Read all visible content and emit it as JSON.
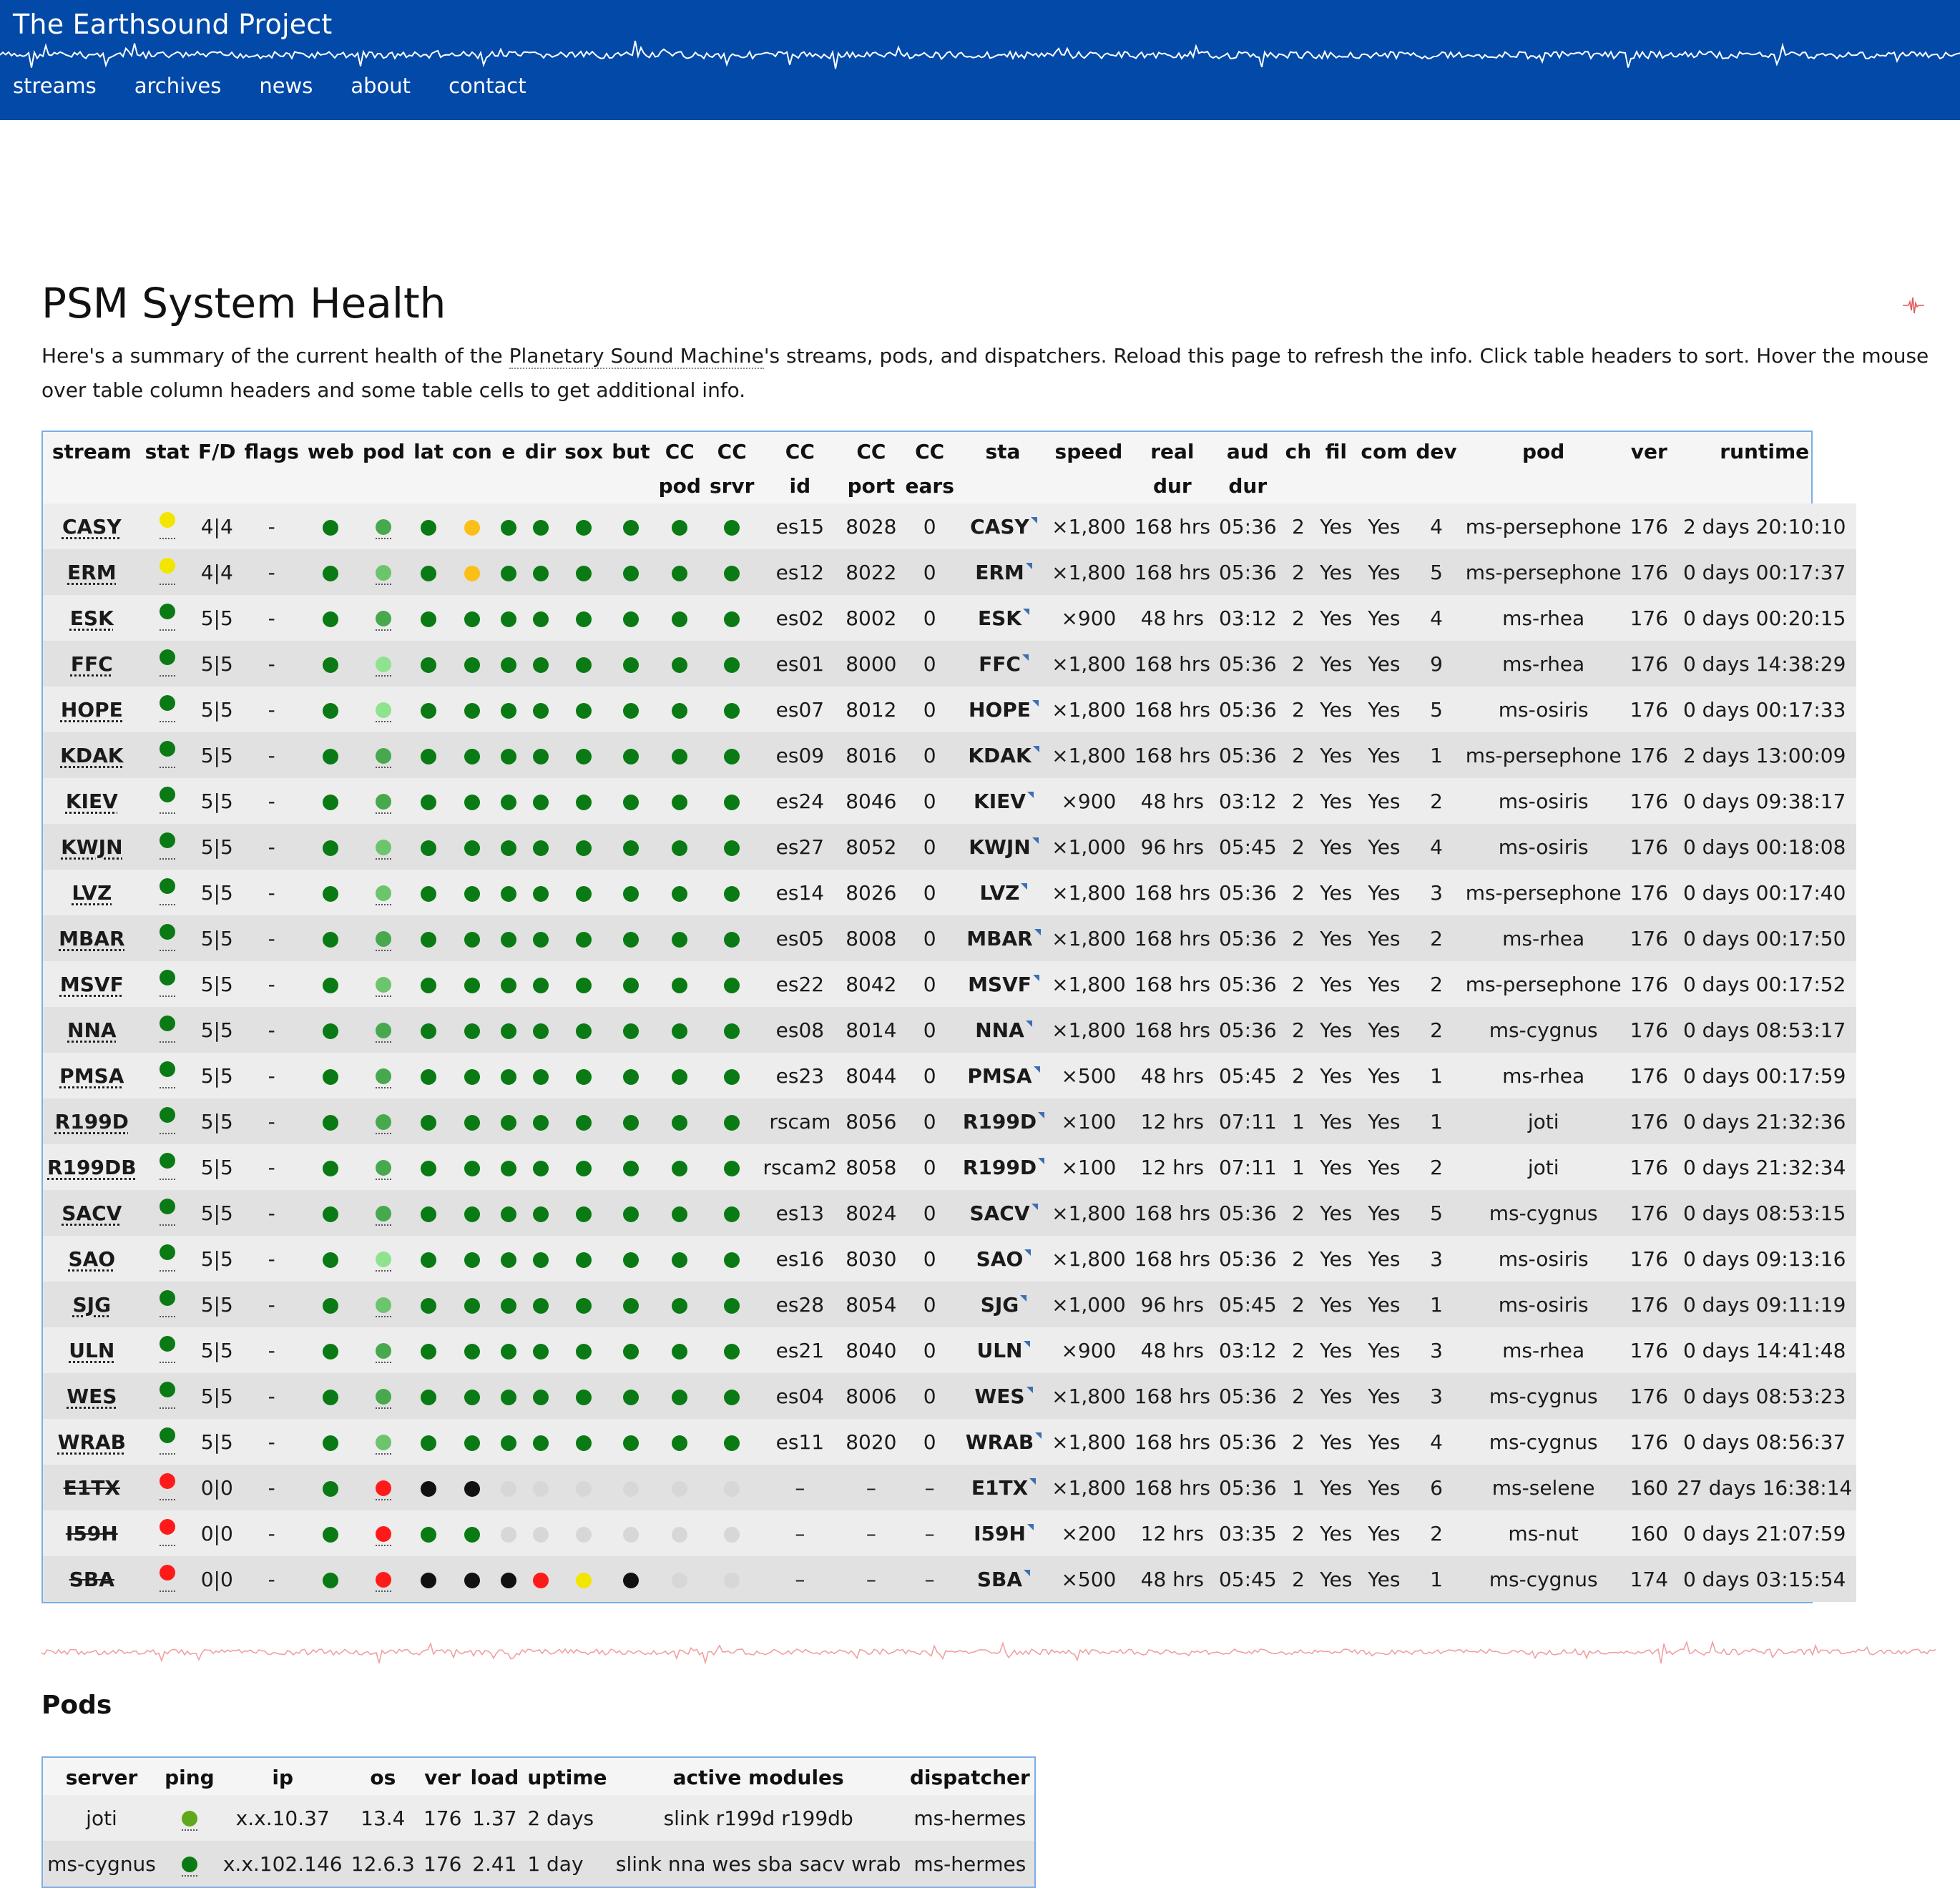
{
  "header": {
    "title": "The Earthsound Project",
    "nav": [
      "streams",
      "archives",
      "news",
      "about",
      "contact"
    ]
  },
  "page": {
    "title": "PSM System Health",
    "intro_before": "Here's a summary of the current health of the ",
    "intro_link": "Planetary Sound Machine",
    "intro_after": "'s streams, pods, and dispatchers. Reload this page to refresh the info. Click table headers to sort. Hover the mouse over table column headers and some table cells to get additional info."
  },
  "colors": {
    "header_bg": "#0349a8",
    "dark_green": "#0a7a14",
    "medium_green": "#48a84e",
    "light_green": "#8fe38f",
    "bright_green": "#6cc46c",
    "olive_green": "#5ea81a",
    "yellow": "#f2e600",
    "orange": "#fbbf1a",
    "red": "#ff1a1a",
    "black": "#111111",
    "grey": "#d7d7d7",
    "table_border": "#7aaee8"
  },
  "streams_table": {
    "headers": [
      [
        "stream"
      ],
      [
        "stat"
      ],
      [
        "F/D"
      ],
      [
        "flags"
      ],
      [
        "web"
      ],
      [
        "pod"
      ],
      [
        "lat"
      ],
      [
        "con"
      ],
      [
        "e"
      ],
      [
        "dir"
      ],
      [
        "sox"
      ],
      [
        "but"
      ],
      [
        "CC",
        "pod"
      ],
      [
        "CC",
        "srvr"
      ],
      [
        "CC",
        "id"
      ],
      [
        "CC",
        "port"
      ],
      [
        "CC",
        "ears"
      ],
      [
        "sta"
      ],
      [
        "speed"
      ],
      [
        "real",
        "dur"
      ],
      [
        "aud",
        "dur"
      ],
      [
        "ch"
      ],
      [
        "fil"
      ],
      [
        "com"
      ],
      [
        "dev"
      ],
      [
        "pod"
      ],
      [
        "ver"
      ],
      [
        "runtime"
      ]
    ],
    "rows": [
      {
        "stream": "CASY",
        "strike": false,
        "stat": "yellow",
        "fd": "4|4",
        "flags": "-",
        "dots": [
          "dg",
          "mg",
          "dg",
          "or",
          "dg",
          "dg",
          "dg",
          "dg",
          "dg",
          "dg"
        ],
        "cc_id": "es15",
        "cc_port": "8028",
        "cc_ears": "0",
        "sta": "CASY",
        "speed": "×1,800",
        "real_dur": "168 hrs",
        "aud_dur": "05:36",
        "ch": "2",
        "fil": "Yes",
        "com": "Yes",
        "dev": "4",
        "pod": "ms-persephone",
        "ver": "176",
        "runtime": "2 days 20:10:10"
      },
      {
        "stream": "ERM",
        "strike": false,
        "stat": "yellow",
        "fd": "4|4",
        "flags": "-",
        "dots": [
          "dg",
          "bg",
          "dg",
          "or",
          "dg",
          "dg",
          "dg",
          "dg",
          "dg",
          "dg"
        ],
        "cc_id": "es12",
        "cc_port": "8022",
        "cc_ears": "0",
        "sta": "ERM",
        "speed": "×1,800",
        "real_dur": "168 hrs",
        "aud_dur": "05:36",
        "ch": "2",
        "fil": "Yes",
        "com": "Yes",
        "dev": "5",
        "pod": "ms-persephone",
        "ver": "176",
        "runtime": "0 days 00:17:37"
      },
      {
        "stream": "ESK",
        "strike": false,
        "stat": "dg",
        "fd": "5|5",
        "flags": "-",
        "dots": [
          "dg",
          "mg",
          "dg",
          "dg",
          "dg",
          "dg",
          "dg",
          "dg",
          "dg",
          "dg"
        ],
        "cc_id": "es02",
        "cc_port": "8002",
        "cc_ears": "0",
        "sta": "ESK",
        "speed": "×900",
        "real_dur": "48 hrs",
        "aud_dur": "03:12",
        "ch": "2",
        "fil": "Yes",
        "com": "Yes",
        "dev": "4",
        "pod": "ms-rhea",
        "ver": "176",
        "runtime": "0 days 00:20:15"
      },
      {
        "stream": "FFC",
        "strike": false,
        "stat": "dg",
        "fd": "5|5",
        "flags": "-",
        "dots": [
          "dg",
          "lg",
          "dg",
          "dg",
          "dg",
          "dg",
          "dg",
          "dg",
          "dg",
          "dg"
        ],
        "cc_id": "es01",
        "cc_port": "8000",
        "cc_ears": "0",
        "sta": "FFC",
        "speed": "×1,800",
        "real_dur": "168 hrs",
        "aud_dur": "05:36",
        "ch": "2",
        "fil": "Yes",
        "com": "Yes",
        "dev": "9",
        "pod": "ms-rhea",
        "ver": "176",
        "runtime": "0 days 14:38:29"
      },
      {
        "stream": "HOPE",
        "strike": false,
        "stat": "dg",
        "fd": "5|5",
        "flags": "-",
        "dots": [
          "dg",
          "lg",
          "dg",
          "dg",
          "dg",
          "dg",
          "dg",
          "dg",
          "dg",
          "dg"
        ],
        "cc_id": "es07",
        "cc_port": "8012",
        "cc_ears": "0",
        "sta": "HOPE",
        "speed": "×1,800",
        "real_dur": "168 hrs",
        "aud_dur": "05:36",
        "ch": "2",
        "fil": "Yes",
        "com": "Yes",
        "dev": "5",
        "pod": "ms-osiris",
        "ver": "176",
        "runtime": "0 days 00:17:33"
      },
      {
        "stream": "KDAK",
        "strike": false,
        "stat": "dg",
        "fd": "5|5",
        "flags": "-",
        "dots": [
          "dg",
          "mg",
          "dg",
          "dg",
          "dg",
          "dg",
          "dg",
          "dg",
          "dg",
          "dg"
        ],
        "cc_id": "es09",
        "cc_port": "8016",
        "cc_ears": "0",
        "sta": "KDAK",
        "speed": "×1,800",
        "real_dur": "168 hrs",
        "aud_dur": "05:36",
        "ch": "2",
        "fil": "Yes",
        "com": "Yes",
        "dev": "1",
        "pod": "ms-persephone",
        "ver": "176",
        "runtime": "2 days 13:00:09"
      },
      {
        "stream": "KIEV",
        "strike": false,
        "stat": "dg",
        "fd": "5|5",
        "flags": "-",
        "dots": [
          "dg",
          "mg",
          "dg",
          "dg",
          "dg",
          "dg",
          "dg",
          "dg",
          "dg",
          "dg"
        ],
        "cc_id": "es24",
        "cc_port": "8046",
        "cc_ears": "0",
        "sta": "KIEV",
        "speed": "×900",
        "real_dur": "48 hrs",
        "aud_dur": "03:12",
        "ch": "2",
        "fil": "Yes",
        "com": "Yes",
        "dev": "2",
        "pod": "ms-osiris",
        "ver": "176",
        "runtime": "0 days 09:38:17"
      },
      {
        "stream": "KWJN",
        "strike": false,
        "stat": "dg",
        "fd": "5|5",
        "flags": "-",
        "dots": [
          "dg",
          "bg",
          "dg",
          "dg",
          "dg",
          "dg",
          "dg",
          "dg",
          "dg",
          "dg"
        ],
        "cc_id": "es27",
        "cc_port": "8052",
        "cc_ears": "0",
        "sta": "KWJN",
        "speed": "×1,000",
        "real_dur": "96 hrs",
        "aud_dur": "05:45",
        "ch": "2",
        "fil": "Yes",
        "com": "Yes",
        "dev": "4",
        "pod": "ms-osiris",
        "ver": "176",
        "runtime": "0 days 00:18:08"
      },
      {
        "stream": "LVZ",
        "strike": false,
        "stat": "dg",
        "fd": "5|5",
        "flags": "-",
        "dots": [
          "dg",
          "bg",
          "dg",
          "dg",
          "dg",
          "dg",
          "dg",
          "dg",
          "dg",
          "dg"
        ],
        "cc_id": "es14",
        "cc_port": "8026",
        "cc_ears": "0",
        "sta": "LVZ",
        "speed": "×1,800",
        "real_dur": "168 hrs",
        "aud_dur": "05:36",
        "ch": "2",
        "fil": "Yes",
        "com": "Yes",
        "dev": "3",
        "pod": "ms-persephone",
        "ver": "176",
        "runtime": "0 days 00:17:40"
      },
      {
        "stream": "MBAR",
        "strike": false,
        "stat": "dg",
        "fd": "5|5",
        "flags": "-",
        "dots": [
          "dg",
          "mg",
          "dg",
          "dg",
          "dg",
          "dg",
          "dg",
          "dg",
          "dg",
          "dg"
        ],
        "cc_id": "es05",
        "cc_port": "8008",
        "cc_ears": "0",
        "sta": "MBAR",
        "speed": "×1,800",
        "real_dur": "168 hrs",
        "aud_dur": "05:36",
        "ch": "2",
        "fil": "Yes",
        "com": "Yes",
        "dev": "2",
        "pod": "ms-rhea",
        "ver": "176",
        "runtime": "0 days 00:17:50"
      },
      {
        "stream": "MSVF",
        "strike": false,
        "stat": "dg",
        "fd": "5|5",
        "flags": "-",
        "dots": [
          "dg",
          "bg",
          "dg",
          "dg",
          "dg",
          "dg",
          "dg",
          "dg",
          "dg",
          "dg"
        ],
        "cc_id": "es22",
        "cc_port": "8042",
        "cc_ears": "0",
        "sta": "MSVF",
        "speed": "×1,800",
        "real_dur": "168 hrs",
        "aud_dur": "05:36",
        "ch": "2",
        "fil": "Yes",
        "com": "Yes",
        "dev": "2",
        "pod": "ms-persephone",
        "ver": "176",
        "runtime": "0 days 00:17:52"
      },
      {
        "stream": "NNA",
        "strike": false,
        "stat": "dg",
        "fd": "5|5",
        "flags": "-",
        "dots": [
          "dg",
          "mg",
          "dg",
          "dg",
          "dg",
          "dg",
          "dg",
          "dg",
          "dg",
          "dg"
        ],
        "cc_id": "es08",
        "cc_port": "8014",
        "cc_ears": "0",
        "sta": "NNA",
        "speed": "×1,800",
        "real_dur": "168 hrs",
        "aud_dur": "05:36",
        "ch": "2",
        "fil": "Yes",
        "com": "Yes",
        "dev": "2",
        "pod": "ms-cygnus",
        "ver": "176",
        "runtime": "0 days 08:53:17"
      },
      {
        "stream": "PMSA",
        "strike": false,
        "stat": "dg",
        "fd": "5|5",
        "flags": "-",
        "dots": [
          "dg",
          "mg",
          "dg",
          "dg",
          "dg",
          "dg",
          "dg",
          "dg",
          "dg",
          "dg"
        ],
        "cc_id": "es23",
        "cc_port": "8044",
        "cc_ears": "0",
        "sta": "PMSA",
        "speed": "×500",
        "real_dur": "48 hrs",
        "aud_dur": "05:45",
        "ch": "2",
        "fil": "Yes",
        "com": "Yes",
        "dev": "1",
        "pod": "ms-rhea",
        "ver": "176",
        "runtime": "0 days 00:17:59"
      },
      {
        "stream": "R199D",
        "strike": false,
        "stat": "dg",
        "fd": "5|5",
        "flags": "-",
        "dots": [
          "dg",
          "mg",
          "dg",
          "dg",
          "dg",
          "dg",
          "dg",
          "dg",
          "dg",
          "dg"
        ],
        "cc_id": "rscam",
        "cc_port": "8056",
        "cc_ears": "0",
        "sta": "R199D",
        "speed": "×100",
        "real_dur": "12 hrs",
        "aud_dur": "07:11",
        "ch": "1",
        "fil": "Yes",
        "com": "Yes",
        "dev": "1",
        "pod": "joti",
        "ver": "176",
        "runtime": "0 days 21:32:36"
      },
      {
        "stream": "R199DB",
        "strike": false,
        "stat": "dg",
        "fd": "5|5",
        "flags": "-",
        "dots": [
          "dg",
          "mg",
          "dg",
          "dg",
          "dg",
          "dg",
          "dg",
          "dg",
          "dg",
          "dg"
        ],
        "cc_id": "rscam2",
        "cc_port": "8058",
        "cc_ears": "0",
        "sta": "R199D",
        "speed": "×100",
        "real_dur": "12 hrs",
        "aud_dur": "07:11",
        "ch": "1",
        "fil": "Yes",
        "com": "Yes",
        "dev": "2",
        "pod": "joti",
        "ver": "176",
        "runtime": "0 days 21:32:34"
      },
      {
        "stream": "SACV",
        "strike": false,
        "stat": "dg",
        "fd": "5|5",
        "flags": "-",
        "dots": [
          "dg",
          "mg",
          "dg",
          "dg",
          "dg",
          "dg",
          "dg",
          "dg",
          "dg",
          "dg"
        ],
        "cc_id": "es13",
        "cc_port": "8024",
        "cc_ears": "0",
        "sta": "SACV",
        "speed": "×1,800",
        "real_dur": "168 hrs",
        "aud_dur": "05:36",
        "ch": "2",
        "fil": "Yes",
        "com": "Yes",
        "dev": "5",
        "pod": "ms-cygnus",
        "ver": "176",
        "runtime": "0 days 08:53:15"
      },
      {
        "stream": "SAO",
        "strike": false,
        "stat": "dg",
        "fd": "5|5",
        "flags": "-",
        "dots": [
          "dg",
          "lg",
          "dg",
          "dg",
          "dg",
          "dg",
          "dg",
          "dg",
          "dg",
          "dg"
        ],
        "cc_id": "es16",
        "cc_port": "8030",
        "cc_ears": "0",
        "sta": "SAO",
        "speed": "×1,800",
        "real_dur": "168 hrs",
        "aud_dur": "05:36",
        "ch": "2",
        "fil": "Yes",
        "com": "Yes",
        "dev": "3",
        "pod": "ms-osiris",
        "ver": "176",
        "runtime": "0 days 09:13:16"
      },
      {
        "stream": "SJG",
        "strike": false,
        "stat": "dg",
        "fd": "5|5",
        "flags": "-",
        "dots": [
          "dg",
          "bg",
          "dg",
          "dg",
          "dg",
          "dg",
          "dg",
          "dg",
          "dg",
          "dg"
        ],
        "cc_id": "es28",
        "cc_port": "8054",
        "cc_ears": "0",
        "sta": "SJG",
        "speed": "×1,000",
        "real_dur": "96 hrs",
        "aud_dur": "05:45",
        "ch": "2",
        "fil": "Yes",
        "com": "Yes",
        "dev": "1",
        "pod": "ms-osiris",
        "ver": "176",
        "runtime": "0 days 09:11:19"
      },
      {
        "stream": "ULN",
        "strike": false,
        "stat": "dg",
        "fd": "5|5",
        "flags": "-",
        "dots": [
          "dg",
          "mg",
          "dg",
          "dg",
          "dg",
          "dg",
          "dg",
          "dg",
          "dg",
          "dg"
        ],
        "cc_id": "es21",
        "cc_port": "8040",
        "cc_ears": "0",
        "sta": "ULN",
        "speed": "×900",
        "real_dur": "48 hrs",
        "aud_dur": "03:12",
        "ch": "2",
        "fil": "Yes",
        "com": "Yes",
        "dev": "3",
        "pod": "ms-rhea",
        "ver": "176",
        "runtime": "0 days 14:41:48"
      },
      {
        "stream": "WES",
        "strike": false,
        "stat": "dg",
        "fd": "5|5",
        "flags": "-",
        "dots": [
          "dg",
          "mg",
          "dg",
          "dg",
          "dg",
          "dg",
          "dg",
          "dg",
          "dg",
          "dg"
        ],
        "cc_id": "es04",
        "cc_port": "8006",
        "cc_ears": "0",
        "sta": "WES",
        "speed": "×1,800",
        "real_dur": "168 hrs",
        "aud_dur": "05:36",
        "ch": "2",
        "fil": "Yes",
        "com": "Yes",
        "dev": "3",
        "pod": "ms-cygnus",
        "ver": "176",
        "runtime": "0 days 08:53:23"
      },
      {
        "stream": "WRAB",
        "strike": false,
        "stat": "dg",
        "fd": "5|5",
        "flags": "-",
        "dots": [
          "dg",
          "bg",
          "dg",
          "dg",
          "dg",
          "dg",
          "dg",
          "dg",
          "dg",
          "dg"
        ],
        "cc_id": "es11",
        "cc_port": "8020",
        "cc_ears": "0",
        "sta": "WRAB",
        "speed": "×1,800",
        "real_dur": "168 hrs",
        "aud_dur": "05:36",
        "ch": "2",
        "fil": "Yes",
        "com": "Yes",
        "dev": "4",
        "pod": "ms-cygnus",
        "ver": "176",
        "runtime": "0 days 08:56:37"
      },
      {
        "stream": "E1TX",
        "strike": true,
        "stat": "red",
        "fd": "0|0",
        "flags": "-",
        "dots": [
          "dg",
          "red",
          "blk",
          "blk",
          "gr",
          "gr",
          "gr",
          "gr",
          "gr",
          "gr"
        ],
        "cc_id": "–",
        "cc_port": "–",
        "cc_ears": "–",
        "sta": "E1TX",
        "speed": "×1,800",
        "real_dur": "168 hrs",
        "aud_dur": "05:36",
        "ch": "1",
        "fil": "Yes",
        "com": "Yes",
        "dev": "6",
        "pod": "ms-selene",
        "ver": "160",
        "runtime": "27 days 16:38:14"
      },
      {
        "stream": "I59H",
        "strike": true,
        "stat": "red",
        "fd": "0|0",
        "flags": "-",
        "dots": [
          "dg",
          "red",
          "dg",
          "dg",
          "gr",
          "gr",
          "gr",
          "gr",
          "gr",
          "gr"
        ],
        "cc_id": "–",
        "cc_port": "–",
        "cc_ears": "–",
        "sta": "I59H",
        "speed": "×200",
        "real_dur": "12 hrs",
        "aud_dur": "03:35",
        "ch": "2",
        "fil": "Yes",
        "com": "Yes",
        "dev": "2",
        "pod": "ms-nut",
        "ver": "160",
        "runtime": "0 days 21:07:59"
      },
      {
        "stream": "SBA",
        "strike": true,
        "stat": "red",
        "fd": "0|0",
        "flags": "-",
        "dots": [
          "dg",
          "red",
          "blk",
          "blk",
          "blk",
          "red",
          "yel",
          "blk",
          "gr",
          "gr"
        ],
        "cc_id": "–",
        "cc_port": "–",
        "cc_ears": "–",
        "sta": "SBA",
        "speed": "×500",
        "real_dur": "48 hrs",
        "aud_dur": "05:45",
        "ch": "2",
        "fil": "Yes",
        "com": "Yes",
        "dev": "1",
        "pod": "ms-cygnus",
        "ver": "174",
        "runtime": "0 days 03:15:54"
      }
    ]
  },
  "pods_section": {
    "title": "Pods",
    "headers": [
      "server",
      "ping",
      "ip",
      "os",
      "ver",
      "load",
      "uptime",
      "active modules",
      "dispatcher"
    ],
    "rows": [
      {
        "server": "joti",
        "ping": "og",
        "ip": "x.x.10.37",
        "os": "13.4",
        "ver": "176",
        "load": "1.37",
        "uptime": "2 days",
        "modules": "slink r199d r199db",
        "dispatcher": "ms-hermes"
      },
      {
        "server": "ms-cygnus",
        "ping": "dg",
        "ip": "x.x.102.146",
        "os": "12.6.3",
        "ver": "176",
        "load": "2.41",
        "uptime": "1 day",
        "modules": "slink nna wes sba sacv wrab",
        "dispatcher": "ms-hermes"
      }
    ]
  }
}
